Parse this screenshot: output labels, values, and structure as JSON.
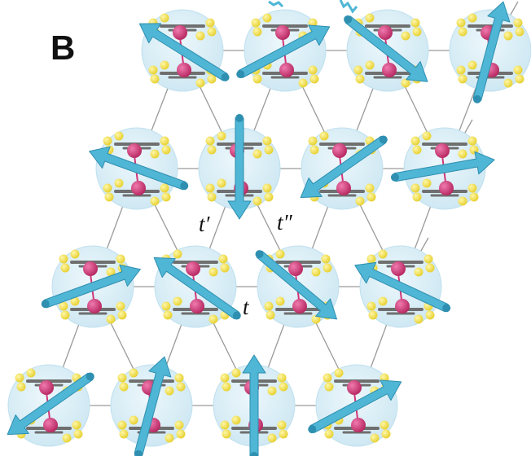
{
  "panel_label": "B",
  "bond_labels": {
    "t_prime": "t′",
    "t_double_prime": "t″",
    "t": "t"
  },
  "colors": {
    "lattice_line": "#9a9a9a",
    "sphere_fill": "#d9eef7",
    "sphere_edge": "#bfe0ee",
    "central_atom": "#d0357a",
    "ligand_atom": "#f2e34f",
    "ring_carbon": "#6f6f6f",
    "arrow": "#4fb6d5",
    "arrow_dark": "#2f8fb0"
  },
  "sites": [
    {
      "id": "r1c1",
      "row": 1,
      "col": 1,
      "spin_angle_deg": 212
    },
    {
      "id": "r1c2",
      "row": 1,
      "col": 2,
      "spin_angle_deg": -28
    },
    {
      "id": "r1c3",
      "row": 1,
      "col": 3,
      "spin_angle_deg": 38
    },
    {
      "id": "r1c4",
      "row": 1,
      "col": 4,
      "spin_angle_deg": -75
    },
    {
      "id": "r2c1",
      "row": 2,
      "col": 1,
      "spin_angle_deg": 200
    },
    {
      "id": "r2c2",
      "row": 2,
      "col": 2,
      "spin_angle_deg": 90
    },
    {
      "id": "r2c3",
      "row": 2,
      "col": 3,
      "spin_angle_deg": 145
    },
    {
      "id": "r2c4",
      "row": 2,
      "col": 4,
      "spin_angle_deg": -10
    },
    {
      "id": "r3c1",
      "row": 3,
      "col": 1,
      "spin_angle_deg": -20
    },
    {
      "id": "r3c2",
      "row": 3,
      "col": 2,
      "spin_angle_deg": 215
    },
    {
      "id": "r3c3",
      "row": 3,
      "col": 3,
      "spin_angle_deg": 40
    },
    {
      "id": "r3c4",
      "row": 3,
      "col": 4,
      "spin_angle_deg": 205
    },
    {
      "id": "r4c1",
      "row": 4,
      "col": 1,
      "spin_angle_deg": 145
    },
    {
      "id": "r4c2",
      "row": 4,
      "col": 2,
      "spin_angle_deg": -75
    },
    {
      "id": "r4c3",
      "row": 4,
      "col": 3,
      "spin_angle_deg": -90
    },
    {
      "id": "r4c4",
      "row": 4,
      "col": 4,
      "spin_angle_deg": -28
    }
  ]
}
